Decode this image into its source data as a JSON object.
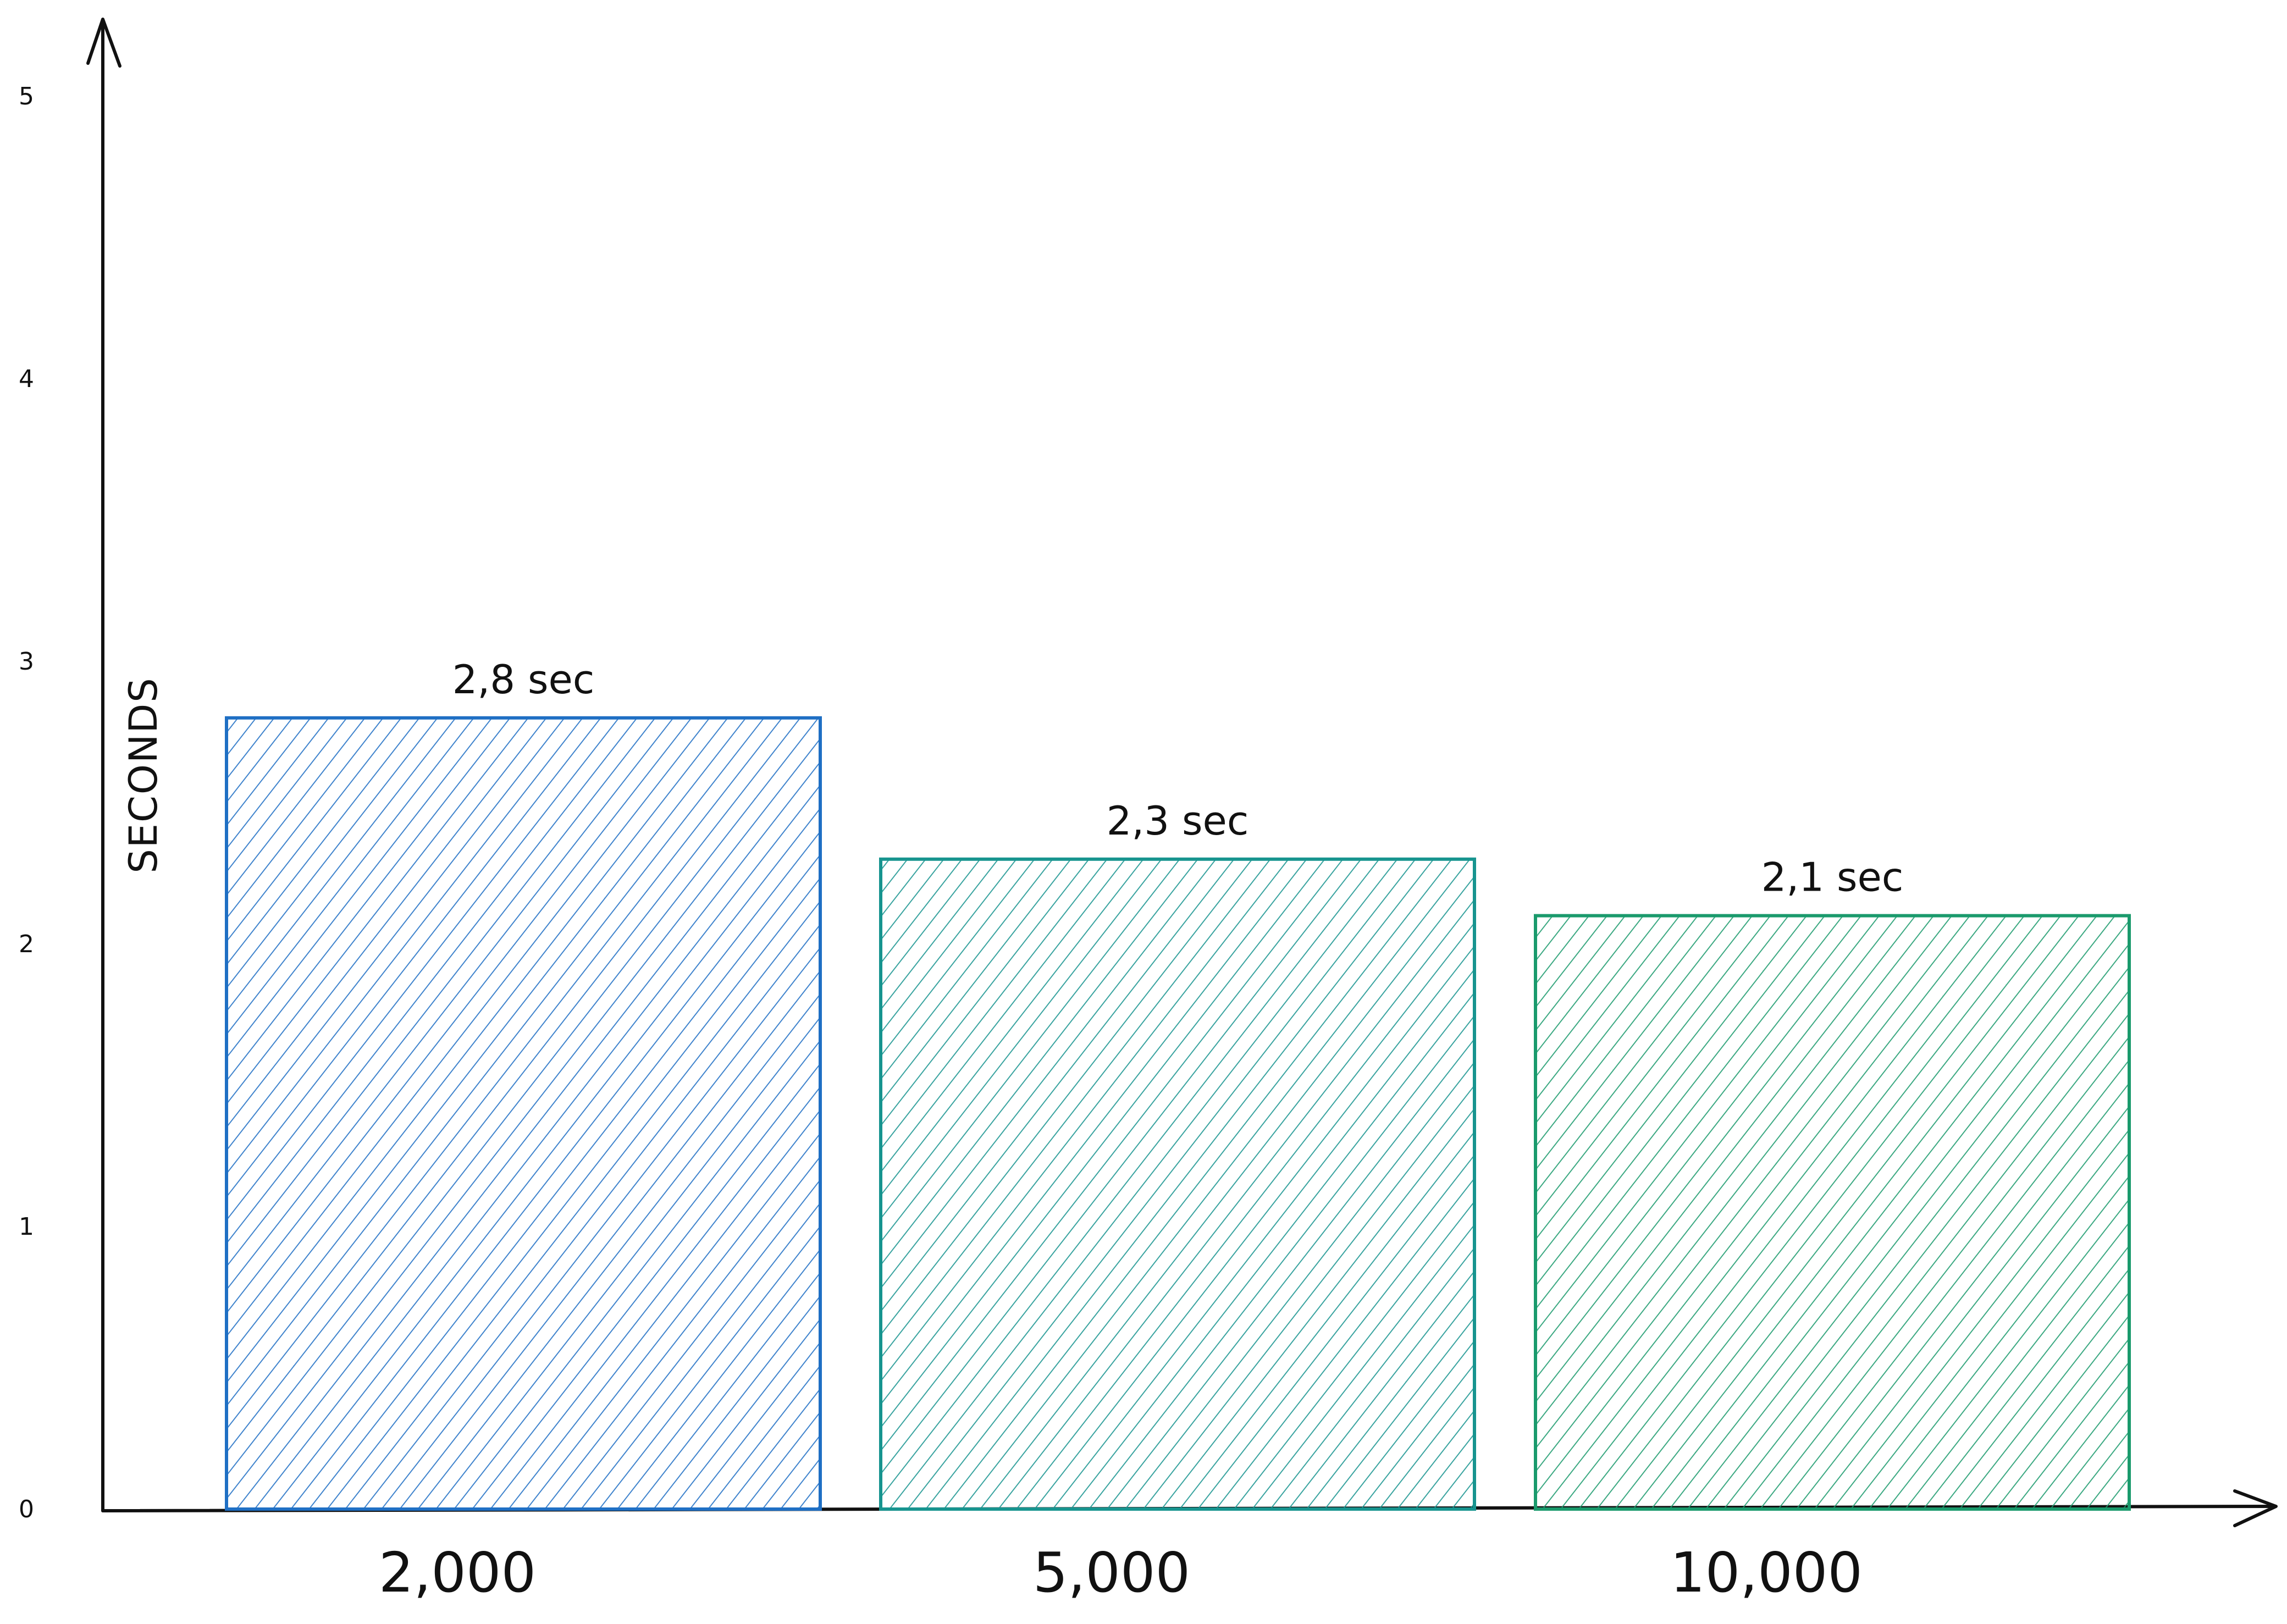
{
  "chart_data": {
    "type": "bar",
    "categories": [
      "2,000",
      "5,000",
      "10,000"
    ],
    "values": [
      2.8,
      2.3,
      2.1
    ],
    "value_labels": [
      "2,8 sec",
      "2,3 sec",
      "2,1 sec"
    ],
    "ylabel": "SECONDS",
    "xlabel": "",
    "title": "",
    "ylim": [
      0,
      5
    ],
    "yticks": [
      "0",
      "1",
      "2",
      "3",
      "4",
      "5"
    ],
    "colors": [
      "#1f6fc4",
      "#17948f",
      "#1a9a6c"
    ],
    "fill": "hatched",
    "grid": false
  }
}
